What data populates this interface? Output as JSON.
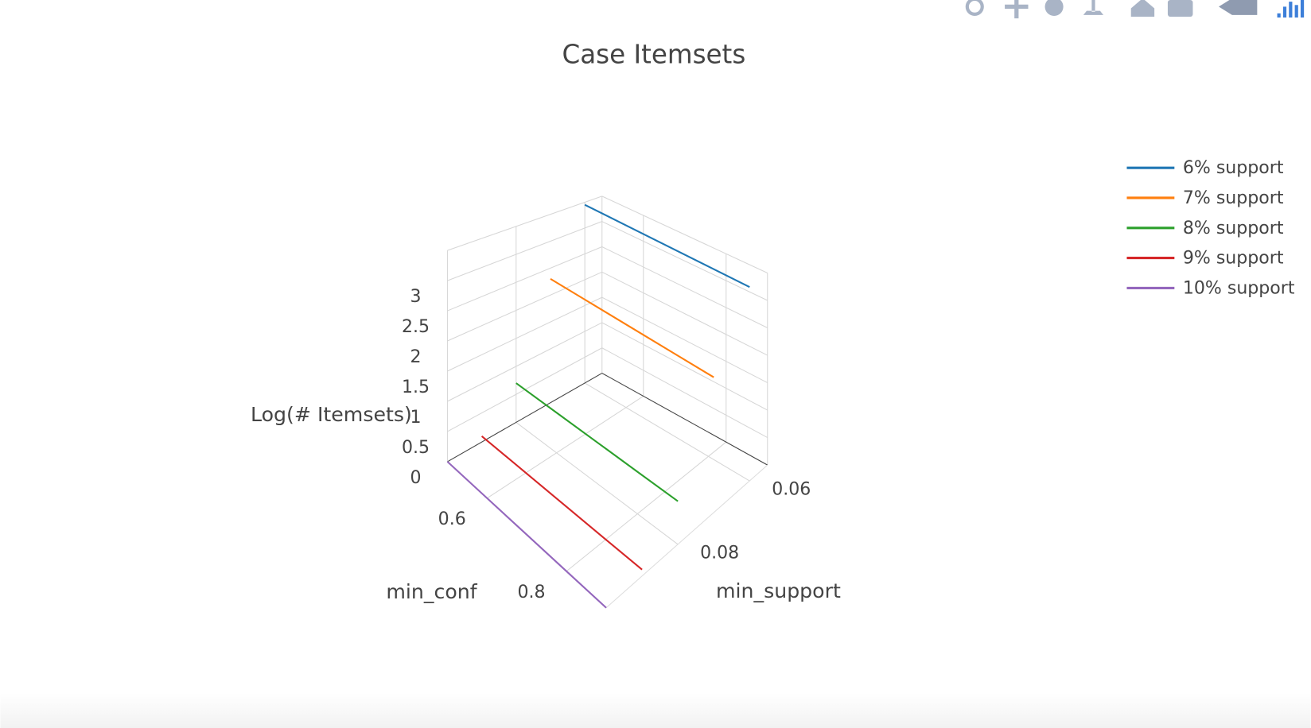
{
  "chart_data": {
    "type": "line3d",
    "title": "Case Itemsets",
    "x_label": "min_conf",
    "y_label": "min_support",
    "z_label": "Log(# Itemsets)",
    "xlim": [
      0.5,
      0.9
    ],
    "xticks": [
      0.6,
      0.8
    ],
    "ylim": [
      0.055,
      0.1
    ],
    "yticks": [
      0.06,
      0.08
    ],
    "zlim": [
      0,
      3.5
    ],
    "zticks": [
      0,
      0.5,
      1,
      1.5,
      2,
      2.5,
      3
    ],
    "x": [
      0.5,
      0.6,
      0.7,
      0.8,
      0.9
    ],
    "series": [
      {
        "name": "6% support",
        "color": "#1f77b4",
        "support": 0.06,
        "values": [
          3.45,
          3.45,
          3.45,
          3.45,
          3.45
        ]
      },
      {
        "name": "7% support",
        "color": "#ff7f0e",
        "support": 0.07,
        "values": [
          2.3,
          2.3,
          2.3,
          2.3,
          2.3
        ]
      },
      {
        "name": "8% support",
        "color": "#2ca02c",
        "support": 0.08,
        "values": [
          0.7,
          0.7,
          0.7,
          0.7,
          0.7
        ]
      },
      {
        "name": "9% support",
        "color": "#d62728",
        "support": 0.09,
        "values": [
          0.1,
          0.1,
          0.1,
          0.1,
          0.1
        ]
      },
      {
        "name": "10% support",
        "color": "#9467bd",
        "support": 0.1,
        "values": [
          0,
          0,
          0,
          0,
          0
        ]
      }
    ],
    "grid": true,
    "legend": "top-right"
  }
}
